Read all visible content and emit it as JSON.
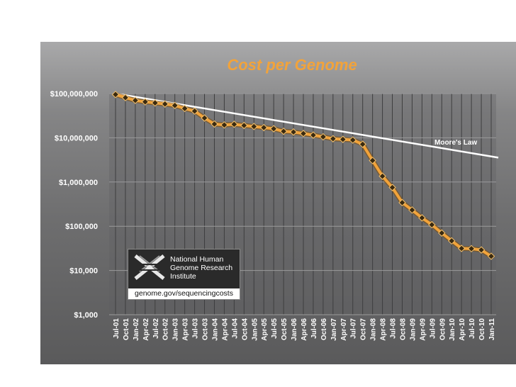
{
  "chart_data": {
    "type": "line",
    "title": "Cost per Genome",
    "xlabel": "",
    "ylabel": "",
    "yscale": "log",
    "ylim": [
      1000,
      100000000
    ],
    "y_ticks": [
      {
        "value": 100000000,
        "label": "$100,000,000"
      },
      {
        "value": 10000000,
        "label": "$10,000,000"
      },
      {
        "value": 1000000,
        "label": "$1,000,000"
      },
      {
        "value": 100000,
        "label": "$100,000"
      },
      {
        "value": 10000,
        "label": "$10,000"
      },
      {
        "value": 1000,
        "label": "$1,000"
      }
    ],
    "categories": [
      "Jul-01",
      "Oct-01",
      "Jan-02",
      "Apr-02",
      "Jul-02",
      "Oct-02",
      "Jan-03",
      "Apr-03",
      "Jul-03",
      "Oct-03",
      "Jan-04",
      "Apr-04",
      "Jul-04",
      "Oct-04",
      "Jan-05",
      "Apr-05",
      "Jul-05",
      "Oct-05",
      "Jan-06",
      "Apr-06",
      "Jul-06",
      "Oct-06",
      "Jan-07",
      "Apr-07",
      "Jul-07",
      "Oct-07",
      "Jan-08",
      "Apr-08",
      "Jul-08",
      "Oct-08",
      "Jan-09",
      "Apr-09",
      "Jul-09",
      "Oct-09",
      "Jan-10",
      "Apr-10",
      "Jul-10",
      "Oct-10",
      "Jan-11"
    ],
    "grid": true,
    "legend": "none",
    "series": [
      {
        "name": "",
        "color": "#f2a33a",
        "marker_color": "#3a2a10",
        "values": [
          95263072,
          81000000,
          70175437,
          65000000,
          61448422,
          58000000,
          53751684,
          46000000,
          40157554,
          28000000,
          20442576,
          19500000,
          20199836,
          19000000,
          18000000,
          17000000,
          16000000,
          14000000,
          13500000,
          12500000,
          11500000,
          10500000,
          9500000,
          9200000,
          8900000,
          7147571,
          3063820,
          1352982,
          752080,
          342502,
          232735,
          154714,
          108065,
          70333,
          46774,
          31512,
          31125,
          29092,
          20963
        ]
      },
      {
        "name": "Moore's Law",
        "color": "#ffffff",
        "x": [
          "Jul-01",
          "Jan-11"
        ],
        "values": [
          100000000,
          3700000
        ]
      }
    ]
  },
  "logo": {
    "line1": "National Human",
    "line2": "Genome Research",
    "line3": "Institute",
    "url": "genome.gov/sequencingcosts"
  },
  "colors": {
    "accent": "#f2a33a",
    "background_top": "#a9a9aa",
    "background_bottom": "#5a5a5b"
  }
}
